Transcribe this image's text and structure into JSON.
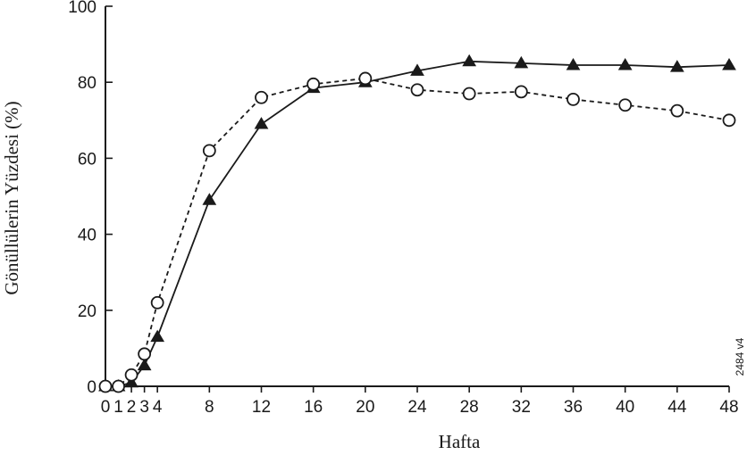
{
  "chart_data": {
    "type": "line",
    "title": "",
    "xlabel": "Hafta",
    "ylabel": "Gönüllülerin Yüzdesi (%)",
    "xlim": [
      0,
      48
    ],
    "ylim": [
      0,
      100
    ],
    "x_ticks": [
      0,
      1,
      2,
      3,
      4,
      8,
      12,
      16,
      20,
      24,
      28,
      32,
      36,
      40,
      44,
      48
    ],
    "y_ticks": [
      0,
      20,
      40,
      60,
      80,
      100
    ],
    "grid": false,
    "legend": "none",
    "annotation": "2484 v4",
    "series": [
      {
        "marker": "filled-triangle",
        "line_style": "solid",
        "color": "#1a1a1a",
        "x": [
          0,
          1,
          2,
          3,
          4,
          8,
          12,
          16,
          20,
          24,
          28,
          32,
          36,
          40,
          44,
          48
        ],
        "y": [
          0,
          0,
          1,
          5.5,
          13,
          49,
          69,
          78.5,
          80,
          83,
          85.5,
          85,
          84.5,
          84.5,
          84,
          84.5
        ]
      },
      {
        "marker": "open-circle",
        "line_style": "dashed",
        "color": "#1a1a1a",
        "x": [
          0,
          1,
          2,
          3,
          4,
          8,
          12,
          16,
          20,
          24,
          28,
          32,
          36,
          40,
          44,
          48
        ],
        "y": [
          0,
          0,
          3,
          8.5,
          22,
          62,
          76,
          79.5,
          81,
          78,
          77,
          77.5,
          75.5,
          74,
          72.5,
          70
        ]
      }
    ]
  }
}
